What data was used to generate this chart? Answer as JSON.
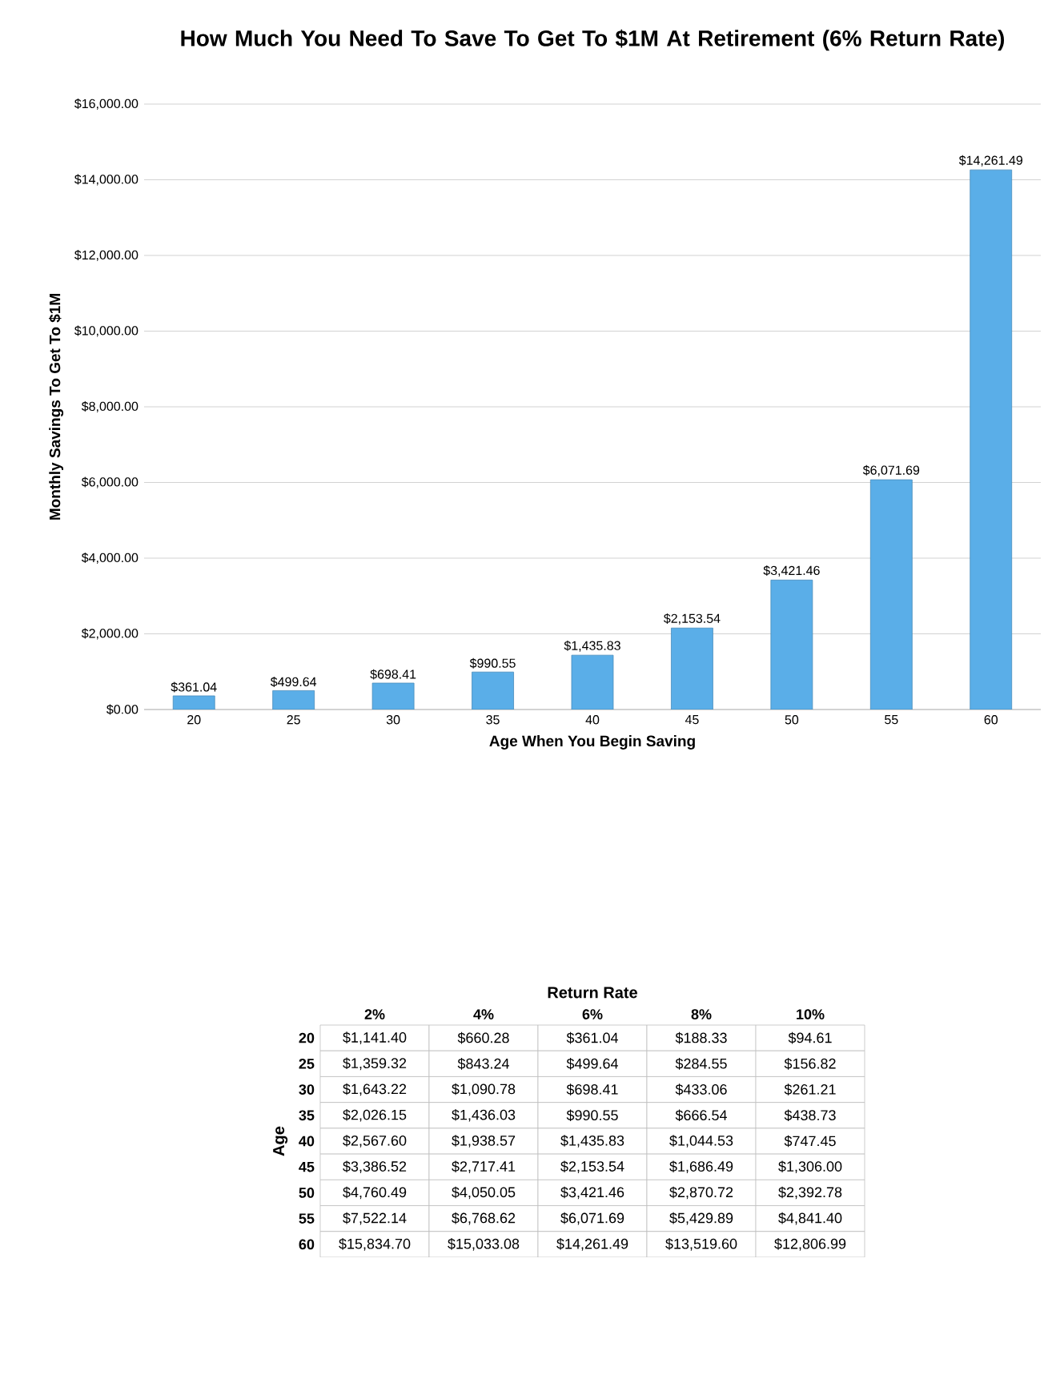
{
  "chart_data": [
    {
      "type": "bar",
      "title": "How Much You Need To Save To Get To $1M At Retirement (6% Return Rate)",
      "xlabel": "Age When You Begin Saving",
      "ylabel": "Monthly Savings To Get To $1M",
      "categories": [
        "20",
        "25",
        "30",
        "35",
        "40",
        "45",
        "50",
        "55",
        "60"
      ],
      "values": [
        361.04,
        499.64,
        698.41,
        990.55,
        1435.83,
        2153.54,
        3421.46,
        6071.69,
        14261.49
      ],
      "value_labels": [
        "$361.04",
        "$499.64",
        "$698.41",
        "$990.55",
        "$1,435.83",
        "$2,153.54",
        "$3,421.46",
        "$6,071.69",
        "$14,261.49"
      ],
      "color": "#5aaee8",
      "grid": "y",
      "ylim": [
        0,
        16000
      ],
      "yticks": [
        {
          "value": 0,
          "label": "$0.00"
        },
        {
          "value": 2000,
          "label": "$2,000.00"
        },
        {
          "value": 4000,
          "label": "$4,000.00"
        },
        {
          "value": 6000,
          "label": "$6,000.00"
        },
        {
          "value": 8000,
          "label": "$8,000.00"
        },
        {
          "value": 10000,
          "label": "$10,000.00"
        },
        {
          "value": 12000,
          "label": "$12,000.00"
        },
        {
          "value": 14000,
          "label": "$14,000.00"
        },
        {
          "value": 16000,
          "label": "$16,000.00"
        }
      ]
    },
    {
      "type": "heatmap",
      "xlabel": "Return Rate",
      "ylabel": "Age",
      "categories": [
        "2%",
        "4%",
        "6%",
        "8%",
        "10%"
      ],
      "y_categories": [
        "20",
        "25",
        "30",
        "35",
        "40",
        "45",
        "50",
        "55",
        "60"
      ],
      "cells": [
        [
          null,
          null,
          null,
          null,
          null
        ],
        [
          null,
          null,
          null,
          null,
          null
        ],
        [
          null,
          null,
          null,
          null,
          null
        ],
        [
          null,
          null,
          null,
          null,
          null
        ],
        [
          null,
          null,
          null,
          null,
          null
        ],
        [
          null,
          null,
          null,
          null,
          null
        ],
        [
          null,
          null,
          null,
          null,
          null
        ],
        [
          null,
          null,
          null,
          null,
          null
        ],
        [
          null,
          null,
          null,
          null,
          null
        ]
      ],
      "cell_labels": [
        [
          "$1,141.40",
          "$660.28",
          "$361.04",
          "$188.33",
          "$94.61"
        ],
        [
          "$1,359.32",
          "$843.24",
          "$499.64",
          "$284.55",
          "$156.82"
        ],
        [
          "$1,643.22",
          "$1,090.78",
          "$698.41",
          "$433.06",
          "$261.21"
        ],
        [
          "$2,026.15",
          "$1,436.03",
          "$990.55",
          "$666.54",
          "$438.73"
        ],
        [
          "$2,567.60",
          "$1,938.57",
          "$1,435.83",
          "$1,044.53",
          "$747.45"
        ],
        [
          "$3,386.52",
          "$2,717.41",
          "$2,153.54",
          "$1,686.49",
          "$1,306.00"
        ],
        [
          "$4,760.49",
          "$4,050.05",
          "$3,421.46",
          "$2,870.72",
          "$2,392.78"
        ],
        [
          "$7,522.14",
          "$6,768.62",
          "$6,071.69",
          "$5,429.89",
          "$4,841.40"
        ],
        [
          "$15,834.70",
          "$15,033.08",
          "$14,261.49",
          "$13,519.60",
          "$12,806.99"
        ]
      ]
    }
  ]
}
